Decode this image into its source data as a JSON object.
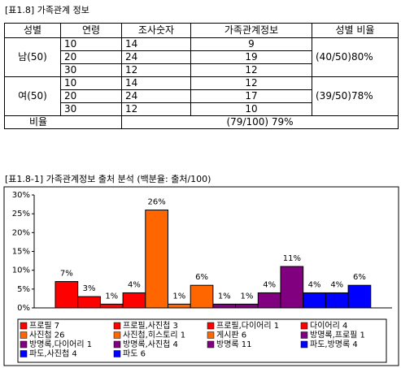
{
  "table_title": "[표1.8] 가족관계 정보",
  "table": {
    "header": [
      "성별",
      "연령",
      "조사숫자",
      "가족관계정보",
      "성별 비율"
    ],
    "groups": [
      {
        "gender": "남(50)",
        "rows": [
          [
            "10",
            "14",
            "9"
          ],
          [
            "20",
            "24",
            "19"
          ],
          [
            "30",
            "12",
            "12"
          ]
        ],
        "ratio": "(40/50)80%"
      },
      {
        "gender": "여(50)",
        "rows": [
          [
            "10",
            "14",
            "12"
          ],
          [
            "20",
            "24",
            "17"
          ],
          [
            "30",
            "12",
            "10"
          ]
        ],
        "ratio": "(39/50)78%"
      }
    ],
    "footer": [
      "비율",
      "(79/100) 79%"
    ]
  },
  "chart_title": "[표1.8-1] 가족관계정보 출처 분석 (백분율: 출처/100)",
  "chart_data": {
    "type": "bar",
    "categories": [
      "프로필 7",
      "프로필,사진첩 3",
      "프로필,다이어리 1",
      "다이어리 4",
      "사진첩 26",
      "사진첩,히스토리 1",
      "게시판 6",
      "방명록,프로필 1",
      "방명록,다이어리 1",
      "방명록,사진첩 4",
      "방명록 11",
      "파도,방명록 4",
      "파도,사진첩 4",
      "파도 6"
    ],
    "values": [
      7,
      3,
      1,
      4,
      26,
      1,
      6,
      1,
      1,
      4,
      11,
      4,
      4,
      6
    ],
    "value_labels": [
      "7%",
      "3%",
      "1%",
      "4%",
      "26%",
      "1%",
      "6%",
      "1%",
      "1%",
      "4%",
      "11%",
      "4%",
      "4%",
      "6%"
    ],
    "colors": [
      "#ff0000",
      "#ff0000",
      "#ff0000",
      "#ff0000",
      "#ff6600",
      "#ff6600",
      "#ff6600",
      "#800080",
      "#800080",
      "#800080",
      "#800080",
      "#0000ff",
      "#0000ff",
      "#0000ff"
    ],
    "ylim": [
      0,
      30
    ],
    "yticks": [
      {
        "value": 0,
        "label": "0%"
      },
      {
        "value": 5,
        "label": "5%"
      },
      {
        "value": 10,
        "label": "10%"
      },
      {
        "value": 15,
        "label": "15%"
      },
      {
        "value": 20,
        "label": "20%"
      },
      {
        "value": 25,
        "label": "25%"
      },
      {
        "value": 30,
        "label": "30%"
      }
    ],
    "grid": false
  }
}
